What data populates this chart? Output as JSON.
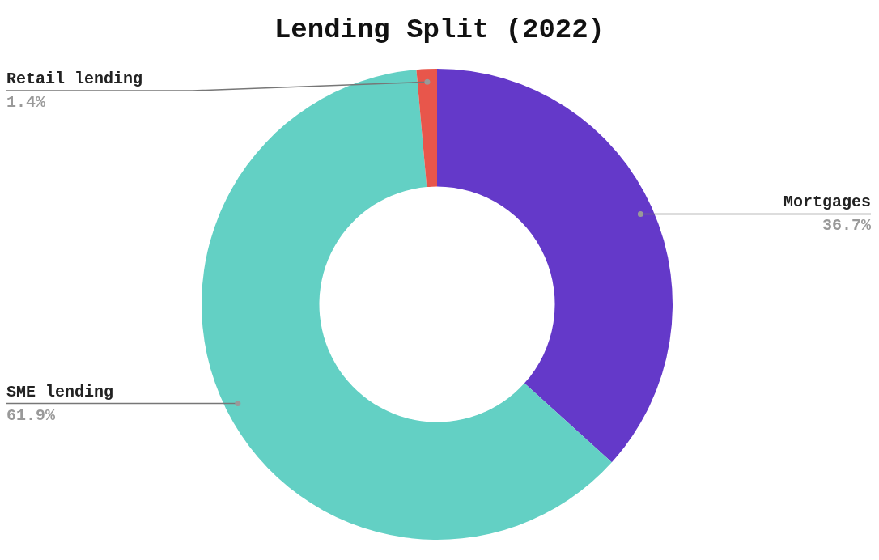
{
  "chart_data": {
    "type": "donut",
    "title": "Lending Split (2022)",
    "categories": [
      "Mortgages",
      "SME lending",
      "Retail lending"
    ],
    "values": [
      36.7,
      61.9,
      1.4
    ],
    "colors": [
      "#6439c9",
      "#63d0c4",
      "#e8564b"
    ],
    "value_labels": [
      "36.7%",
      "61.9%",
      "1.4%"
    ]
  }
}
